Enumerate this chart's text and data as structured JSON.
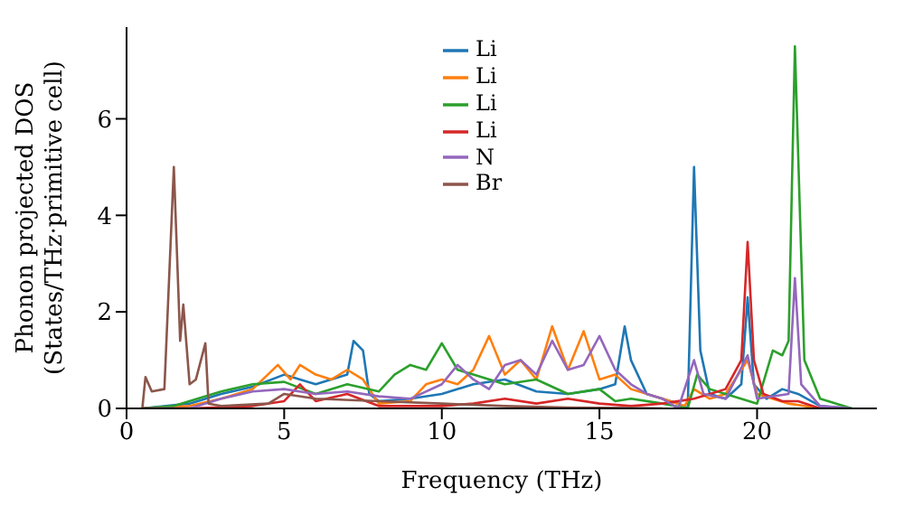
{
  "chart_data": {
    "type": "line",
    "xlabel": "Frequency (THz)",
    "ylabel": "Phonon projected DOS\n(States/THz·primitive cell)",
    "xlim": [
      0,
      23.8
    ],
    "ylim": [
      0,
      7.9
    ],
    "xticks": [
      0,
      5,
      10,
      15,
      20
    ],
    "yticks": [
      0,
      2,
      4,
      6
    ],
    "grid": false,
    "legend": "top",
    "marker": "none",
    "line_style": "solid",
    "series": [
      {
        "name": "Li",
        "color": "#1f77b4",
        "x": [
          0.5,
          2,
          3,
          4,
          5,
          5.5,
          6,
          7,
          7.2,
          7.5,
          7.7,
          8,
          9,
          10,
          11,
          12,
          13,
          14,
          15,
          15.5,
          15.8,
          16,
          16.5,
          17.5,
          17.8,
          18,
          18.2,
          18.5,
          19,
          19.5,
          19.7,
          19.9,
          20.3,
          20.8,
          21.3,
          22,
          23
        ],
        "values": [
          0,
          0.1,
          0.3,
          0.45,
          0.7,
          0.6,
          0.5,
          0.7,
          1.4,
          1.2,
          0.3,
          0.15,
          0.2,
          0.3,
          0.5,
          0.6,
          0.35,
          0.3,
          0.4,
          0.5,
          1.7,
          1.0,
          0.3,
          0.1,
          0,
          5.0,
          1.2,
          0.3,
          0.2,
          0.5,
          2.3,
          0.5,
          0.2,
          0.4,
          0.3,
          0.05,
          0
        ]
      },
      {
        "name": "Li",
        "color": "#ff7f0e",
        "x": [
          0.5,
          2,
          3,
          4,
          4.8,
          5.2,
          5.5,
          6,
          6.5,
          7,
          7.5,
          8,
          9,
          9.5,
          10,
          10.5,
          11,
          11.5,
          12,
          12.5,
          13,
          13.5,
          14,
          14.5,
          15,
          15.5,
          16,
          17,
          17.7,
          18,
          18.5,
          19,
          19.7,
          20,
          21,
          21.5,
          22
        ],
        "values": [
          0,
          0.05,
          0.2,
          0.4,
          0.9,
          0.6,
          0.9,
          0.7,
          0.6,
          0.8,
          0.6,
          0.1,
          0.15,
          0.5,
          0.6,
          0.5,
          0.8,
          1.5,
          0.7,
          1.0,
          0.6,
          1.7,
          0.8,
          1.6,
          0.6,
          0.7,
          0.4,
          0.2,
          0.05,
          0.4,
          0.2,
          0.3,
          1.0,
          0.3,
          0.1,
          0.05,
          0
        ]
      },
      {
        "name": "Li",
        "color": "#2ca02c",
        "x": [
          0.5,
          1.5,
          3,
          4,
          5,
          6,
          7,
          8,
          8.5,
          9,
          9.5,
          10,
          10.5,
          11,
          12,
          13,
          14,
          15,
          15.5,
          16,
          17,
          17.8,
          18.1,
          18.5,
          19,
          20,
          20.5,
          20.8,
          21,
          21.2,
          21.5,
          22,
          23
        ],
        "values": [
          0,
          0.05,
          0.35,
          0.5,
          0.55,
          0.3,
          0.5,
          0.35,
          0.7,
          0.9,
          0.8,
          1.35,
          0.8,
          0.7,
          0.5,
          0.6,
          0.3,
          0.4,
          0.15,
          0.2,
          0.1,
          0,
          0.7,
          0.4,
          0.3,
          0.1,
          1.2,
          1.1,
          1.4,
          7.5,
          1.0,
          0.2,
          0
        ]
      },
      {
        "name": "Li",
        "color": "#d62728",
        "x": [
          0.5,
          2,
          4,
          5,
          5.5,
          6,
          7,
          8,
          10,
          11,
          12,
          13,
          14,
          15,
          16,
          17,
          18,
          18.5,
          19,
          19.5,
          19.7,
          19.9,
          20.2,
          20.8,
          21.3,
          22
        ],
        "values": [
          0,
          0,
          0.05,
          0.15,
          0.5,
          0.15,
          0.3,
          0.05,
          0.05,
          0.1,
          0.2,
          0.1,
          0.2,
          0.1,
          0.05,
          0.1,
          0.2,
          0.3,
          0.4,
          1.0,
          3.45,
          1.0,
          0.3,
          0.15,
          0.15,
          0
        ]
      },
      {
        "name": "N",
        "color": "#9467bd",
        "x": [
          0.5,
          2,
          3,
          4,
          5,
          6,
          7,
          8,
          9,
          10,
          10.5,
          11,
          11.5,
          12,
          12.5,
          13,
          13.5,
          14,
          14.5,
          15,
          15.5,
          16,
          16.5,
          17,
          17.5,
          18,
          18.3,
          19,
          19.7,
          20,
          21,
          21.2,
          21.4,
          22,
          23
        ],
        "values": [
          0,
          0,
          0.2,
          0.35,
          0.4,
          0.3,
          0.35,
          0.25,
          0.2,
          0.5,
          0.9,
          0.6,
          0.4,
          0.9,
          1.0,
          0.7,
          1.4,
          0.8,
          0.9,
          1.5,
          0.8,
          0.5,
          0.3,
          0.2,
          0,
          1.0,
          0.3,
          0.2,
          1.1,
          0.2,
          0.3,
          2.7,
          0.5,
          0.05,
          0
        ]
      },
      {
        "name": "Br",
        "color": "#8c564b",
        "x": [
          0.5,
          0.6,
          0.8,
          1.2,
          1.5,
          1.7,
          1.8,
          2,
          2.2,
          2.5,
          2.6,
          3,
          4.5,
          5,
          6,
          8,
          10,
          12,
          14,
          16,
          17
        ],
        "values": [
          0,
          0.65,
          0.35,
          0.4,
          5.0,
          1.4,
          2.15,
          0.5,
          0.6,
          1.35,
          0.1,
          0.05,
          0.1,
          0.3,
          0.2,
          0.15,
          0.1,
          0.05,
          0.02,
          0.01,
          0
        ]
      }
    ]
  }
}
